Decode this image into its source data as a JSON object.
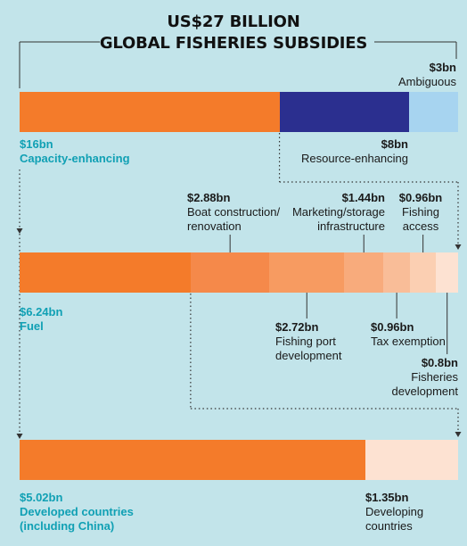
{
  "title": {
    "line1": "US$27 BILLION",
    "line2": "GLOBAL FISHERIES SUBSIDIES"
  },
  "colors": {
    "background": "#c2e4ea",
    "capacity": "#f47b2a",
    "resource": "#2b2f8f",
    "ambiguous": "#a7d4f0",
    "teal_text": "#10a0b4",
    "shades": [
      "#f47b2a",
      "#f5894a",
      "#f79b61",
      "#f8ab7c",
      "#f9bd98",
      "#fbcfb2",
      "#fde2d2"
    ]
  },
  "labels": {
    "total_capacity": "$16bn",
    "total_capacity_name": "Capacity-enhancing",
    "total_resource": "$8bn",
    "total_resource_name": "Resource-enhancing",
    "total_ambiguous": "$3bn",
    "total_ambiguous_name": "Ambiguous",
    "fuel": "$6.24bn",
    "fuel_name": "Fuel",
    "boat": "$2.88bn",
    "boat_name_1": "Boat construction/",
    "boat_name_2": "renovation",
    "port": "$2.72bn",
    "port_name_1": "Fishing port",
    "port_name_2": "development",
    "marketing": "$1.44bn",
    "marketing_name_1": "Marketing/storage",
    "marketing_name_2": "infrastructure",
    "tax": "$0.96bn",
    "tax_name": "Tax exemption",
    "access": "$0.96bn",
    "access_name_1": "Fishing",
    "access_name_2": "access",
    "fisheries_dev": "$0.8bn",
    "fisheries_dev_name_1": "Fisheries",
    "fisheries_dev_name_2": "development",
    "developed": "$5.02bn",
    "developed_name_1": "Developed countries",
    "developed_name_2": "(including China)",
    "developing": "$1.35bn",
    "developing_name_1": "Developing",
    "developing_name_2": "countries"
  },
  "chart_data": [
    {
      "type": "bar",
      "title": "GLOBAL FISHERIES SUBSIDIES",
      "categories": [
        "Capacity-enhancing",
        "Resource-enhancing",
        "Ambiguous"
      ],
      "values": [
        16,
        8,
        3
      ],
      "unit": "US$ billion"
    },
    {
      "type": "bar",
      "categories": [
        "Fuel",
        "Boat construction/ renovation",
        "Fishing port development",
        "Marketing/storage infrastructure",
        "Tax exemption",
        "Fishing access",
        "Fisheries development"
      ],
      "values": [
        6.24,
        2.88,
        2.72,
        1.44,
        0.96,
        0.96,
        0.8
      ],
      "unit": "US$ billion"
    },
    {
      "type": "bar",
      "categories": [
        "Developed countries (including China)",
        "Developing countries"
      ],
      "values": [
        5.02,
        1.35
      ],
      "unit": "US$ billion"
    }
  ]
}
